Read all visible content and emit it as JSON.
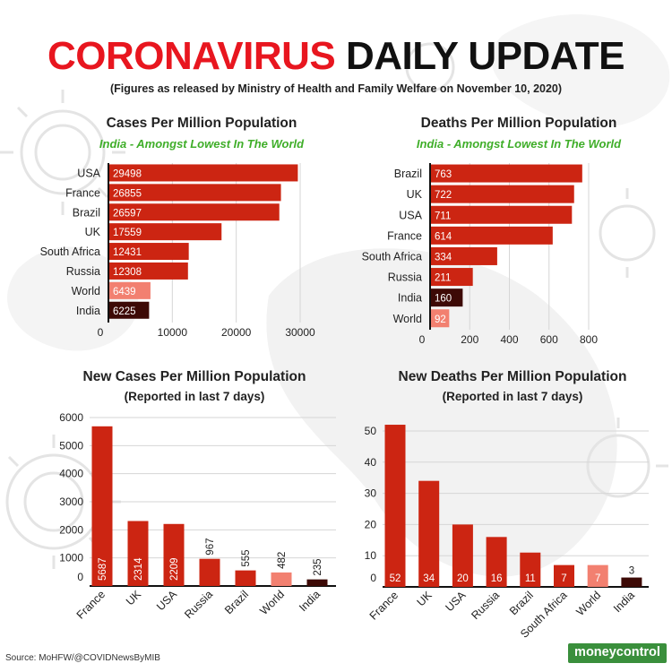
{
  "header": {
    "title_red": "CORONAVIRUS",
    "title_black": "DAILY UPDATE",
    "subtitle": "(Figures as released by Ministry of Health and Family Welfare on November 10, 2020)"
  },
  "panels": {
    "cases": {
      "title": "Cases Per Million Population",
      "subtitle": "India - Amongst Lowest In The World"
    },
    "deaths": {
      "title": "Deaths Per Million Population",
      "subtitle": "India - Amongst Lowest In The World"
    },
    "new_cases": {
      "title": "New Cases Per Million Population",
      "subtitle": "(Reported in last 7 days)"
    },
    "new_deaths": {
      "title": "New Deaths Per Million Population",
      "subtitle": "(Reported in last 7 days)"
    }
  },
  "footer": {
    "source": "Source: MoHFW/@COVIDNewsByMIB",
    "logo_part1": "money",
    "logo_part2": "control"
  },
  "colors": {
    "bar": "#cc2512",
    "world": "#f28070",
    "india": "#3d0a06",
    "title_red": "#e8161f",
    "subtitle_green": "#3fae29",
    "logo_green": "#3a8f3c"
  },
  "chart_data": [
    {
      "type": "bar",
      "orientation": "horizontal",
      "title": "Cases Per Million Population",
      "subtitle": "India - Amongst Lowest In The World",
      "categories": [
        "USA",
        "France",
        "Brazil",
        "UK",
        "South Africa",
        "Russia",
        "World",
        "India"
      ],
      "values": [
        29498,
        26855,
        26597,
        17559,
        12431,
        12308,
        6439,
        6225
      ],
      "value_labels": [
        "29498",
        "26855",
        "26597",
        "17559",
        "12431",
        "12308",
        "6439",
        "6225"
      ],
      "ticks": [
        0,
        10000,
        20000,
        30000
      ],
      "tick_labels": [
        "0",
        "10000",
        "20000",
        "30000"
      ],
      "xlim": [
        0,
        30000
      ],
      "grid": true
    },
    {
      "type": "bar",
      "orientation": "horizontal",
      "title": "Deaths Per Million Population",
      "subtitle": "India - Amongst Lowest In The World",
      "categories": [
        "Brazil",
        "UK",
        "USA",
        "France",
        "South Africa",
        "Russia",
        "India",
        "World"
      ],
      "values": [
        763,
        722,
        711,
        614,
        334,
        211,
        160,
        92
      ],
      "value_labels": [
        "763",
        "722",
        "711",
        "614",
        "334",
        "211",
        "160",
        "92"
      ],
      "ticks": [
        0,
        200,
        400,
        600,
        800
      ],
      "tick_labels": [
        "0",
        "200",
        "400",
        "600",
        "800"
      ],
      "xlim": [
        0,
        800
      ],
      "grid": true
    },
    {
      "type": "bar",
      "orientation": "vertical",
      "title": "New Cases Per Million Population",
      "subtitle": "(Reported in last 7 days)",
      "categories": [
        "France",
        "UK",
        "USA",
        "Russia",
        "Brazil",
        "World",
        "India"
      ],
      "values": [
        5687,
        2314,
        2209,
        967,
        555,
        482,
        235
      ],
      "value_labels": [
        "5687",
        "2314",
        "2209",
        "967",
        "555",
        "482",
        "235"
      ],
      "ticks": [
        0,
        1000,
        2000,
        3000,
        4000,
        5000,
        6000
      ],
      "tick_labels": [
        "0",
        "1000",
        "2000",
        "3000",
        "4000",
        "5000",
        "6000"
      ],
      "ylim": [
        0,
        6000
      ],
      "grid": true
    },
    {
      "type": "bar",
      "orientation": "vertical",
      "title": "New Deaths Per Million Population",
      "subtitle": "(Reported in last 7 days)",
      "categories": [
        "France",
        "UK",
        "USA",
        "Russia",
        "Brazil",
        "South Africa",
        "World",
        "India"
      ],
      "values": [
        52,
        34,
        20,
        16,
        11,
        7,
        7,
        3
      ],
      "value_labels": [
        "52",
        "34",
        "20",
        "16",
        "11",
        "7",
        "7",
        "3"
      ],
      "ticks": [
        0,
        10,
        20,
        30,
        40,
        50
      ],
      "tick_labels": [
        "0",
        "10",
        "20",
        "30",
        "40",
        "50"
      ],
      "ylim": [
        0,
        50
      ],
      "grid": true
    }
  ]
}
